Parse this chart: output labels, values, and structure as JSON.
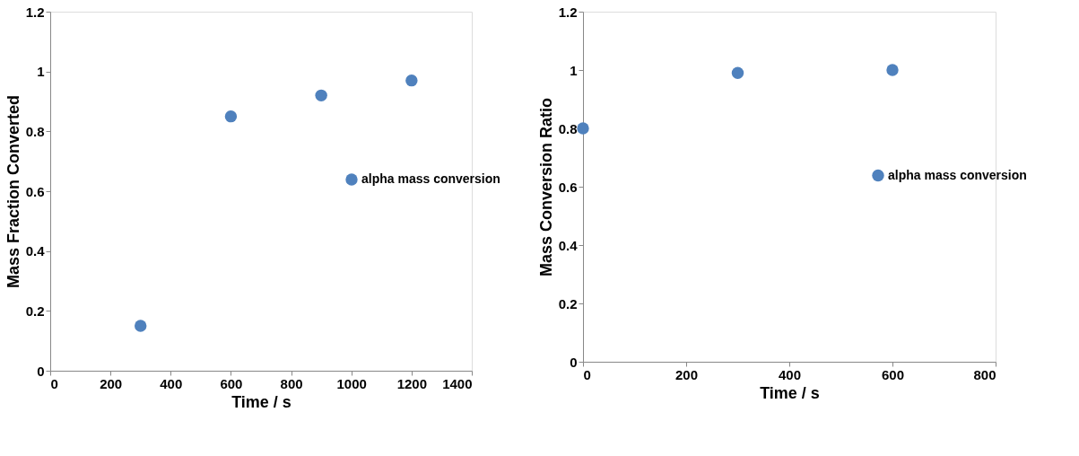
{
  "chart_data": [
    {
      "type": "scatter",
      "xlabel": "Time / s",
      "ylabel": "Mass Fraction Converted",
      "x": [
        300,
        600,
        900,
        1200
      ],
      "series": [
        {
          "name": "alpha mass conversion",
          "color": "#4f81bd",
          "values": [
            0.15,
            0.85,
            0.92,
            0.97
          ]
        }
      ],
      "xlim": [
        0,
        1400
      ],
      "xticks": [
        0,
        200,
        400,
        600,
        800,
        1000,
        1200,
        1400
      ],
      "ylim": [
        0,
        1.2
      ],
      "yticks": [
        0,
        0.2,
        0.4,
        0.6,
        0.8,
        1,
        1.2
      ],
      "grid": false,
      "legend": "right",
      "marker": "circle"
    },
    {
      "type": "scatter",
      "xlabel": "Time / s",
      "ylabel": "Mass Conversion Ratio",
      "x": [
        0,
        300,
        600
      ],
      "series": [
        {
          "name": "alpha mass conversion",
          "color": "#4f81bd",
          "values": [
            0.8,
            0.99,
            1.0
          ]
        }
      ],
      "xlim": [
        0,
        800
      ],
      "xticks": [
        0,
        200,
        400,
        600,
        800
      ],
      "ylim": [
        0,
        1.2
      ],
      "yticks": [
        0,
        0.2,
        0.4,
        0.6,
        0.8,
        1,
        1.2
      ],
      "grid": false,
      "legend": "right",
      "marker": "circle"
    }
  ]
}
